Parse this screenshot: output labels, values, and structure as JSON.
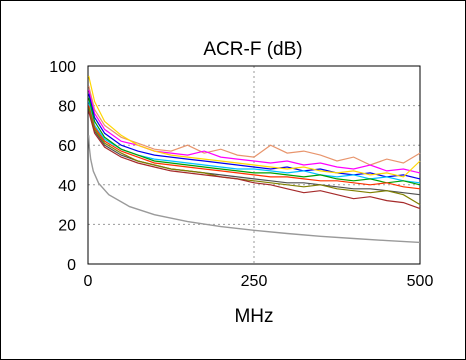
{
  "chart_data": {
    "type": "line",
    "title": "ACR-F (dB)",
    "xlabel": "MHz",
    "ylabel": "",
    "xlim": [
      0,
      500
    ],
    "ylim": [
      0,
      100
    ],
    "x_ticks": [
      "0",
      "250",
      "500"
    ],
    "y_ticks": [
      "0",
      "20",
      "40",
      "60",
      "80",
      "100"
    ],
    "grid": true,
    "limit_line": {
      "color": "#9a9a9a",
      "x": [
        1,
        2,
        4,
        8,
        16,
        31.25,
        62.5,
        100,
        150,
        200,
        250,
        300,
        350,
        400,
        450,
        500
      ],
      "y": [
        65.0,
        58.9,
        52.9,
        46.9,
        40.8,
        35.0,
        29.0,
        24.9,
        21.4,
        18.9,
        17.0,
        15.4,
        14.0,
        12.9,
        11.8,
        10.9
      ]
    },
    "series": [
      {
        "color": "#e8956d",
        "x": [
          1,
          10,
          25,
          50,
          75,
          100,
          125,
          150,
          175,
          200,
          225,
          250,
          275,
          300,
          325,
          350,
          375,
          400,
          425,
          450,
          475,
          500
        ],
        "y": [
          90,
          78,
          70,
          64,
          61,
          58,
          57,
          60,
          56,
          58,
          55,
          54,
          60,
          56,
          57,
          55,
          52,
          54,
          50,
          53,
          51,
          56
        ]
      },
      {
        "color": "#ff00ff",
        "x": [
          1,
          10,
          25,
          50,
          75,
          100,
          125,
          150,
          175,
          200,
          225,
          250,
          275,
          300,
          325,
          350,
          375,
          400,
          425,
          450,
          475,
          500
        ],
        "y": [
          88,
          76,
          68,
          62,
          60,
          57,
          56,
          55,
          57,
          54,
          53,
          52,
          51,
          52,
          50,
          51,
          49,
          48,
          50,
          47,
          48,
          46
        ]
      },
      {
        "color": "#0000ee",
        "x": [
          1,
          10,
          25,
          50,
          75,
          100,
          125,
          150,
          175,
          200,
          225,
          250,
          275,
          300,
          325,
          350,
          375,
          400,
          425,
          450,
          475,
          500
        ],
        "y": [
          86,
          74,
          66,
          60,
          57,
          55,
          54,
          53,
          52,
          51,
          50,
          49,
          48,
          49,
          47,
          48,
          46,
          45,
          46,
          44,
          45,
          43
        ]
      },
      {
        "color": "#ffd700",
        "x": [
          1,
          10,
          25,
          50,
          75,
          100,
          125,
          150,
          175,
          200,
          225,
          250,
          275,
          300,
          325,
          350,
          375,
          400,
          425,
          450,
          475,
          500
        ],
        "y": [
          95,
          82,
          72,
          65,
          60,
          57,
          55,
          54,
          53,
          52,
          51,
          50,
          49,
          48,
          49,
          47,
          46,
          47,
          45,
          46,
          44,
          52
        ]
      },
      {
        "color": "#00c0ff",
        "x": [
          1,
          10,
          25,
          50,
          75,
          100,
          125,
          150,
          175,
          200,
          225,
          250,
          275,
          300,
          325,
          350,
          375,
          400,
          425,
          450,
          475,
          500
        ],
        "y": [
          82,
          70,
          63,
          58,
          55,
          53,
          52,
          51,
          50,
          49,
          48,
          48,
          47,
          46,
          47,
          45,
          44,
          45,
          43,
          44,
          42,
          41
        ]
      },
      {
        "color": "#00a000",
        "x": [
          1,
          10,
          25,
          50,
          75,
          100,
          125,
          150,
          175,
          200,
          225,
          250,
          275,
          300,
          325,
          350,
          375,
          400,
          425,
          450,
          475,
          500
        ],
        "y": [
          84,
          72,
          64,
          58,
          55,
          52,
          51,
          50,
          49,
          48,
          47,
          46,
          46,
          45,
          44,
          45,
          43,
          42,
          43,
          41,
          42,
          40
        ]
      },
      {
        "color": "#ff3300",
        "x": [
          1,
          10,
          25,
          50,
          75,
          100,
          125,
          150,
          175,
          200,
          225,
          250,
          275,
          300,
          325,
          350,
          375,
          400,
          425,
          450,
          475,
          500
        ],
        "y": [
          80,
          69,
          62,
          57,
          54,
          51,
          50,
          49,
          48,
          47,
          46,
          45,
          44,
          44,
          43,
          42,
          42,
          41,
          40,
          41,
          39,
          38
        ]
      },
      {
        "color": "#505050",
        "x": [
          1,
          10,
          25,
          50,
          75,
          100,
          125,
          150,
          175,
          200,
          225,
          250,
          275,
          300,
          325,
          350,
          375,
          400,
          425,
          450,
          475,
          500
        ],
        "y": [
          78,
          67,
          60,
          55,
          52,
          50,
          48,
          47,
          46,
          45,
          44,
          43,
          42,
          41,
          41,
          40,
          39,
          38,
          38,
          37,
          36,
          35
        ]
      },
      {
        "color": "#808000",
        "x": [
          1,
          10,
          25,
          50,
          75,
          100,
          125,
          150,
          175,
          200,
          225,
          250,
          275,
          300,
          325,
          350,
          375,
          400,
          425,
          450,
          475,
          500
        ],
        "y": [
          79,
          68,
          61,
          56,
          52,
          50,
          48,
          47,
          46,
          44,
          43,
          42,
          41,
          40,
          39,
          40,
          38,
          37,
          36,
          37,
          35,
          30
        ]
      },
      {
        "color": "#a52a2a",
        "x": [
          1,
          10,
          25,
          50,
          75,
          100,
          125,
          150,
          175,
          200,
          225,
          250,
          275,
          300,
          325,
          350,
          375,
          400,
          425,
          450,
          475,
          500
        ],
        "y": [
          77,
          66,
          59,
          54,
          51,
          49,
          47,
          46,
          45,
          44,
          43,
          41,
          40,
          38,
          36,
          37,
          35,
          33,
          34,
          32,
          31,
          28
        ]
      }
    ]
  }
}
